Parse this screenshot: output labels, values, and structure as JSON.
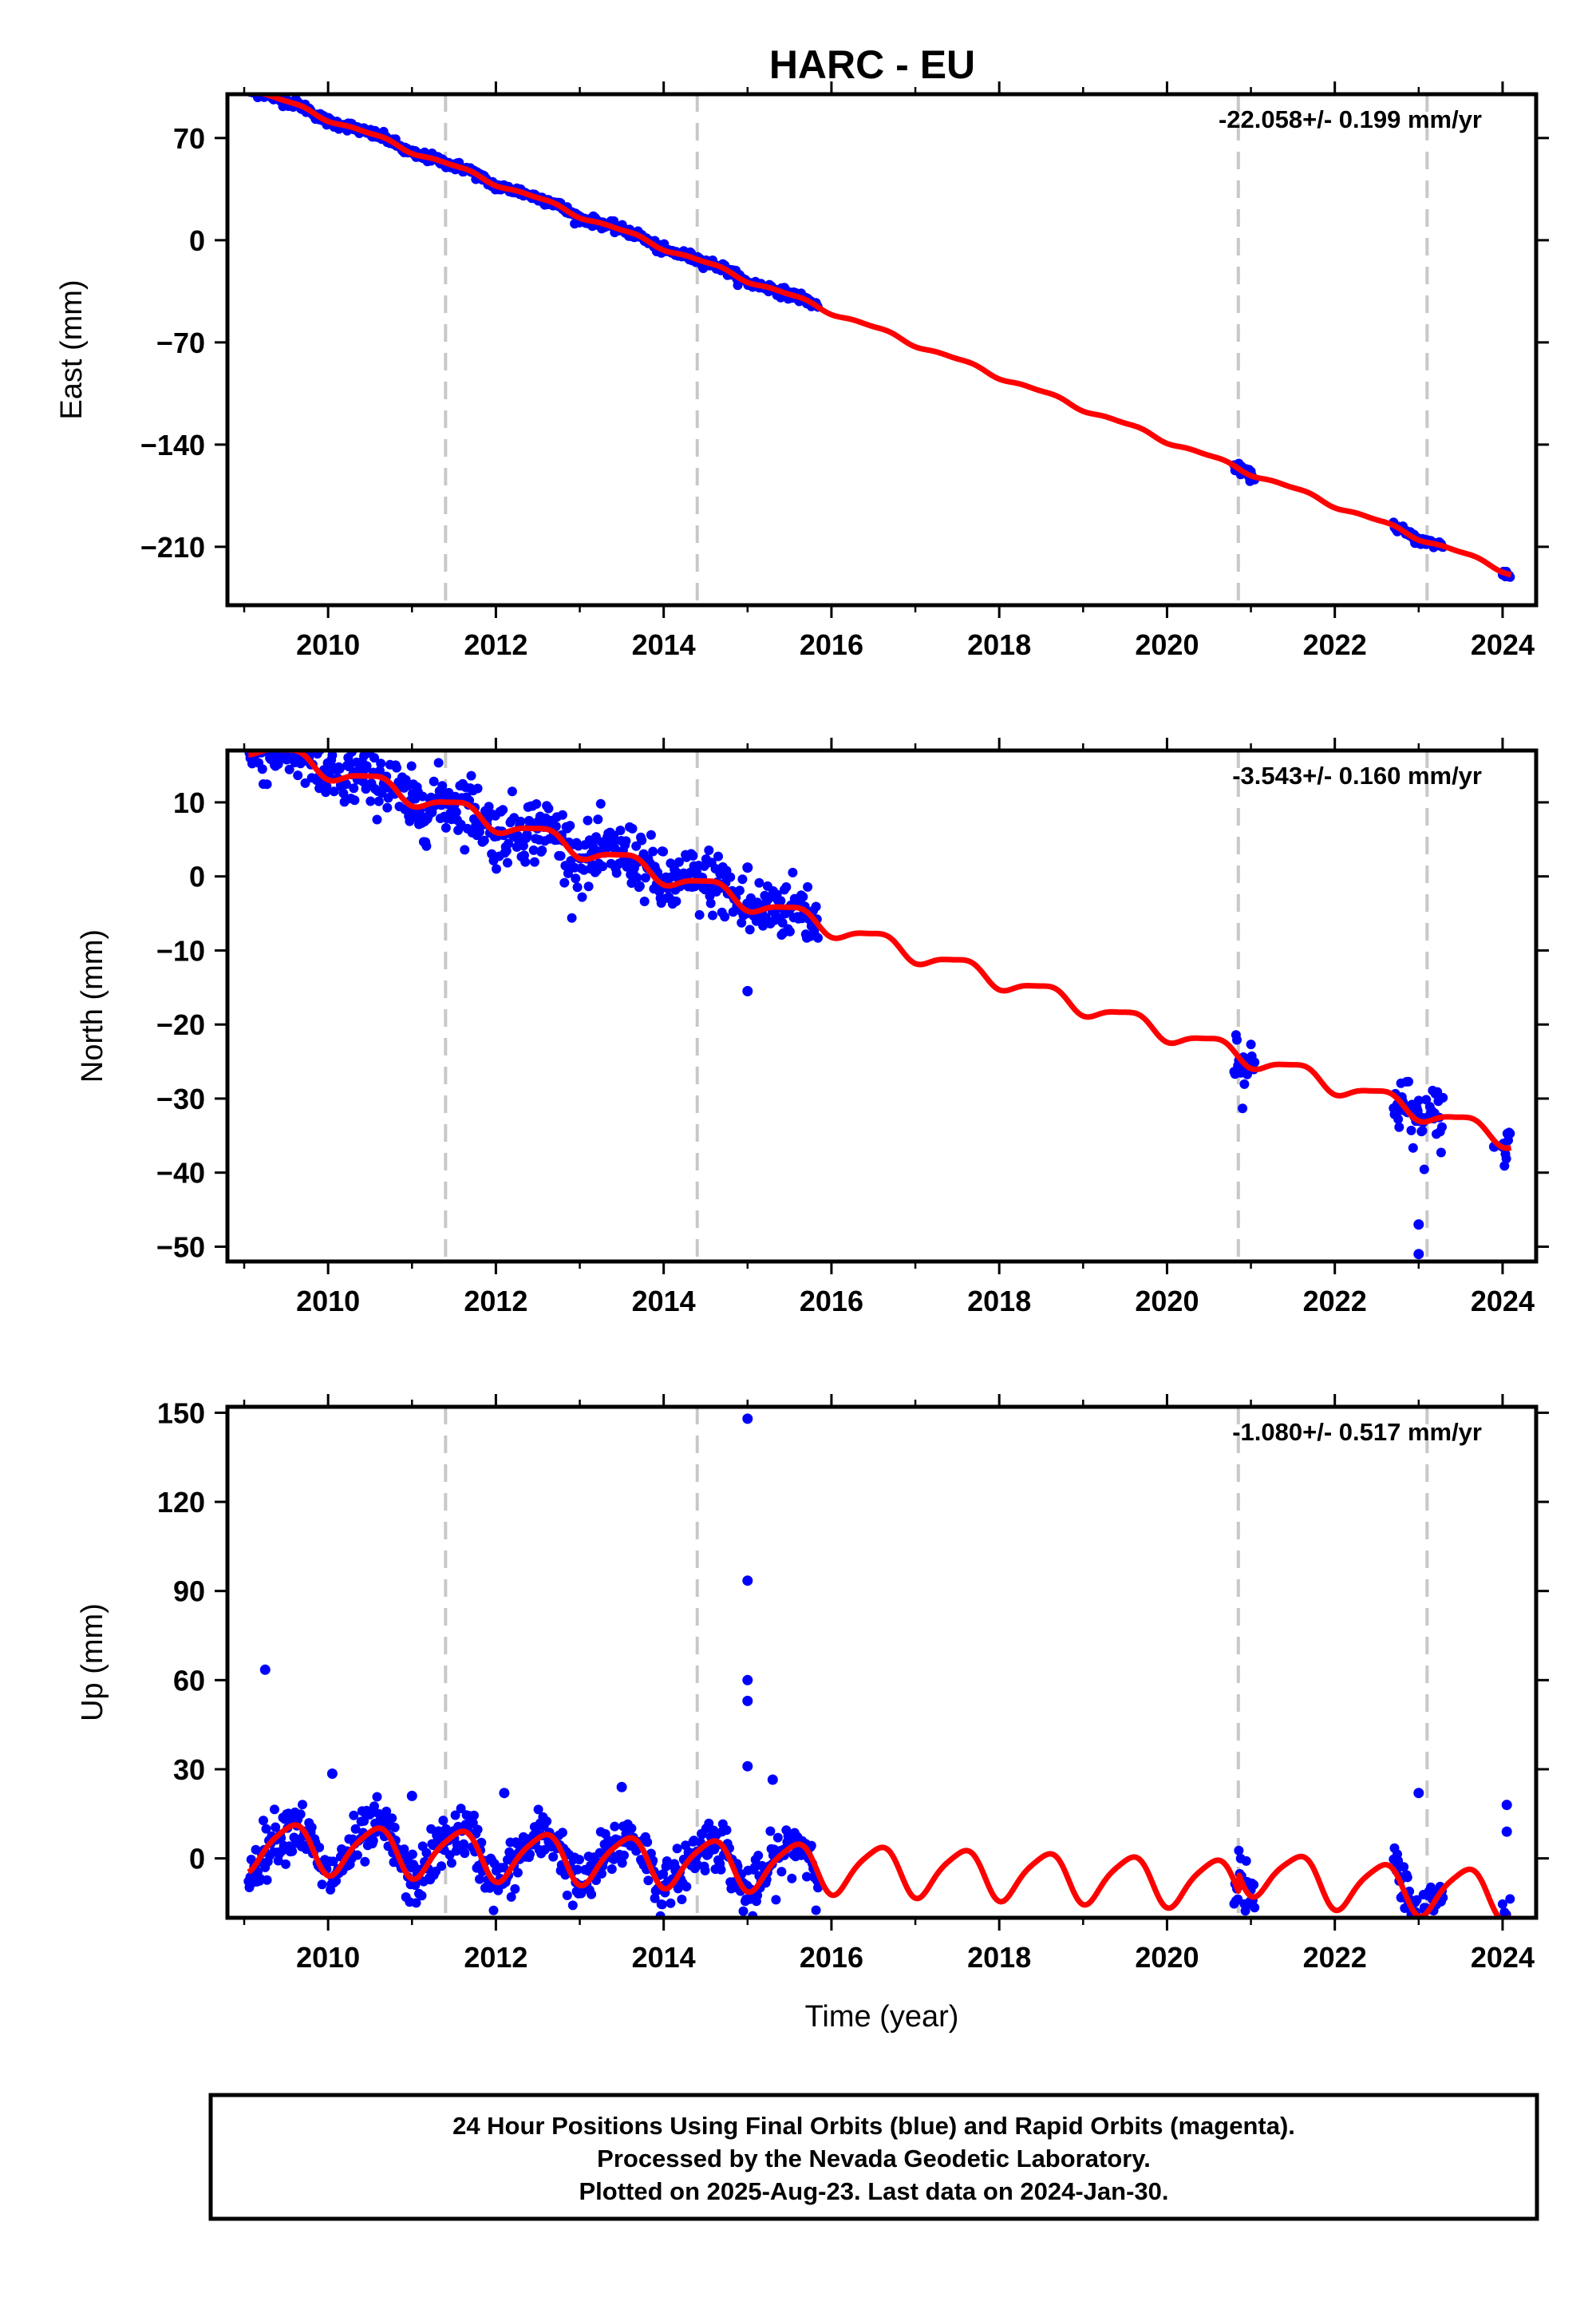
{
  "figure": {
    "title": "HARC - EU",
    "footer_lines": [
      "24 Hour Positions Using Final Orbits (blue) and Rapid Orbits (magenta).",
      "Processed by the Nevada Geodetic Laboratory.",
      "Plotted on 2025-Aug-23. Last data on 2024-Jan-30."
    ],
    "colors": {
      "final_orbits": "#0000ff",
      "model_fit": "#ff0000",
      "equipment_change": "#c8c8c8",
      "frame": "#000000"
    }
  },
  "chart_data": [
    {
      "type": "scatter",
      "component": "east",
      "ylabel": "East (mm)",
      "xlabel": "",
      "rate_text": "-22.058+/- 0.199 mm/yr",
      "xlim": [
        2008.8,
        2024.4
      ],
      "ylim": [
        -250,
        100
      ],
      "xticks": [
        2010,
        2012,
        2014,
        2016,
        2018,
        2020,
        2022,
        2024
      ],
      "xtick_labels": [
        "2010",
        "2012",
        "2014",
        "2016",
        "2018",
        "2020",
        "2022",
        "2024"
      ],
      "yticks": [
        70,
        0,
        -70,
        -140,
        -210
      ],
      "ytick_labels": [
        "70",
        "0",
        "−70",
        "−140",
        "−210"
      ],
      "offset_epochs": [
        2011.4,
        2014.4,
        2020.85,
        2023.1
      ],
      "model": {
        "trend": -22.058,
        "intercept": 28.2,
        "annual_amp": 1.5,
        "semiannual_amp": 0.6,
        "jump_epoch": 2020.85,
        "jump": 0,
        "jump_decay": 0
      },
      "data_segments": [
        [
          2009.05,
          2015.85
        ],
        [
          2020.8,
          2021.05
        ],
        [
          2022.7,
          2023.3
        ],
        [
          2024.0,
          2024.1
        ]
      ],
      "scatter": {
        "noise": 1.6,
        "outliers": []
      },
      "series": [
        {
          "name": "24 Hour Positions Using Final Orbits (blue)",
          "kind": "points",
          "color": "#0000ff"
        },
        {
          "name": "model fit",
          "kind": "line",
          "color": "#ff0000"
        }
      ]
    },
    {
      "type": "scatter",
      "component": "north",
      "ylabel": "North (mm)",
      "xlabel": "",
      "rate_text": "-3.543+/- 0.160 mm/yr",
      "xlim": [
        2008.8,
        2024.4
      ],
      "ylim": [
        -52,
        17
      ],
      "xticks": [
        2010,
        2012,
        2014,
        2016,
        2018,
        2020,
        2022,
        2024
      ],
      "xtick_labels": [
        "2010",
        "2012",
        "2014",
        "2016",
        "2018",
        "2020",
        "2022",
        "2024"
      ],
      "yticks": [
        10,
        0,
        -10,
        -20,
        -30,
        -40,
        -50
      ],
      "ytick_labels": [
        "10",
        "0",
        "−10",
        "−20",
        "−30",
        "−40",
        "−50"
      ],
      "offset_epochs": [
        2011.4,
        2014.4,
        2020.85,
        2023.1
      ],
      "model": {
        "trend": -3.543,
        "intercept": 5.6,
        "annual_amp": 1.2,
        "semiannual_amp": 0.3,
        "jump_epoch": 2020.85,
        "jump": 0,
        "jump_decay": 0
      },
      "data_segments": [
        [
          2009.05,
          2015.85
        ],
        [
          2020.8,
          2021.05
        ],
        [
          2022.7,
          2023.3
        ],
        [
          2024.0,
          2024.1
        ]
      ],
      "scatter": {
        "noise": 2.2,
        "outliers": [
          [
            2015.0,
            1.2
          ],
          [
            2015.0,
            -15.5
          ],
          [
            2023.0,
            -47
          ],
          [
            2023.0,
            -51
          ],
          [
            2023.9,
            -36.5
          ]
        ]
      },
      "series": [
        {
          "name": "24 Hour Positions Using Final Orbits (blue)",
          "kind": "points",
          "color": "#0000ff"
        },
        {
          "name": "model fit",
          "kind": "line",
          "color": "#ff0000"
        }
      ]
    },
    {
      "type": "scatter",
      "component": "up",
      "ylabel": "Up (mm)",
      "xlabel": "Time (year)",
      "rate_text": "-1.080+/- 0.517 mm/yr",
      "xlim": [
        2008.8,
        2024.4
      ],
      "ylim": [
        -20,
        152
      ],
      "xticks": [
        2010,
        2012,
        2014,
        2016,
        2018,
        2020,
        2022,
        2024
      ],
      "xtick_labels": [
        "2010",
        "2012",
        "2014",
        "2016",
        "2018",
        "2020",
        "2022",
        "2024"
      ],
      "yticks": [
        150,
        120,
        90,
        60,
        30,
        0
      ],
      "ytick_labels": [
        "150",
        "120",
        "90",
        "60",
        "30",
        "0"
      ],
      "offset_epochs": [
        2011.4,
        2014.4,
        2020.85,
        2023.1
      ],
      "model": {
        "trend": -1.08,
        "intercept": 0.5,
        "annual_amp": 8.0,
        "semiannual_amp": 1.5,
        "jump_epoch": 2020.85,
        "jump": 6,
        "jump_decay": 0.8
      },
      "data_segments": [
        [
          2009.05,
          2015.85
        ],
        [
          2020.8,
          2021.05
        ],
        [
          2022.7,
          2023.3
        ],
        [
          2024.0,
          2024.1
        ]
      ],
      "scatter": {
        "noise": 4.5,
        "outliers": [
          [
            2009.25,
            63.5
          ],
          [
            2010.05,
            28.5
          ],
          [
            2011.0,
            21
          ],
          [
            2012.1,
            22
          ],
          [
            2013.5,
            24
          ],
          [
            2015.0,
            148
          ],
          [
            2015.0,
            93.5
          ],
          [
            2015.0,
            60
          ],
          [
            2015.0,
            53
          ],
          [
            2015.0,
            31
          ],
          [
            2015.3,
            26.5
          ],
          [
            2023.0,
            22
          ],
          [
            2024.05,
            18
          ],
          [
            2024.05,
            9
          ]
        ]
      },
      "series": [
        {
          "name": "24 Hour Positions Using Final Orbits (blue)",
          "kind": "points",
          "color": "#0000ff"
        },
        {
          "name": "model fit",
          "kind": "line",
          "color": "#ff0000"
        }
      ]
    }
  ]
}
